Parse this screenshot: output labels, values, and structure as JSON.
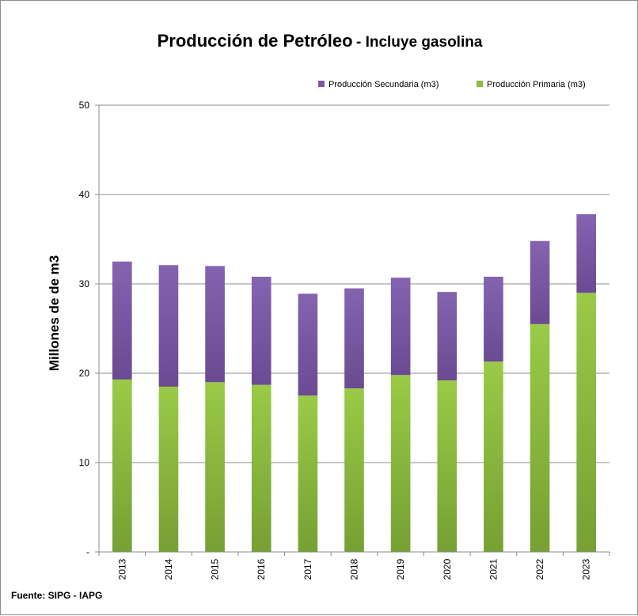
{
  "chart_data": {
    "type": "bar",
    "stacked": true,
    "title": "Producción de Petróleo",
    "subtitle": "- Incluye gasolina",
    "ylabel": "Millones de de m3",
    "xlabel": "",
    "ylim": [
      0,
      50
    ],
    "yticks": [
      {
        "value": 0,
        "label": "-"
      },
      {
        "value": 10,
        "label": "10"
      },
      {
        "value": 20,
        "label": "20"
      },
      {
        "value": 30,
        "label": "30"
      },
      {
        "value": 40,
        "label": "40"
      },
      {
        "value": 50,
        "label": "50"
      }
    ],
    "grid": true,
    "legend_position": "top-right",
    "categories": [
      "2013",
      "2014",
      "2015",
      "2016",
      "2017",
      "2018",
      "2019",
      "2020",
      "2021",
      "2022",
      "2023"
    ],
    "series": [
      {
        "name": "Producción Primaria (m3)",
        "color": "#8DBB3F",
        "values": [
          19.3,
          18.5,
          19.0,
          18.7,
          17.5,
          18.3,
          19.8,
          19.2,
          21.3,
          25.5,
          29.0
        ]
      },
      {
        "name": "Producción Secundaria (m3)",
        "color": "#7A58A3",
        "values": [
          13.2,
          13.6,
          13.0,
          12.1,
          11.4,
          11.2,
          10.9,
          9.9,
          9.5,
          9.3,
          8.8
        ]
      }
    ],
    "legend_order": [
      1,
      0
    ],
    "source": "Fuente: SIPG  - IAPG"
  }
}
